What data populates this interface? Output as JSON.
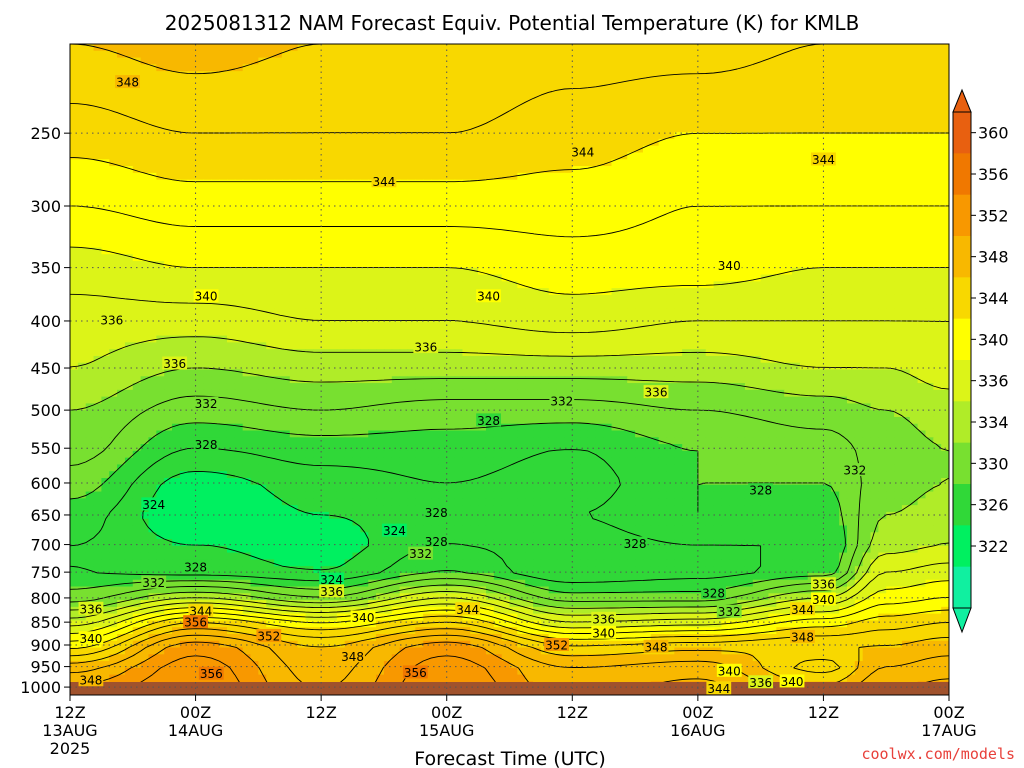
{
  "title": "2025081312 NAM Forecast Equiv. Potential Temperature (K) for KMLB",
  "credit": "coolwx.com/models",
  "colors": {
    "accent_credit": "#e8403a",
    "ground": "#a0522d",
    "grid": "#555555"
  },
  "chart_data": {
    "type": "heatmap",
    "title": "2025081312 NAM Forecast Equiv. Potential Temperature (K) for KMLB",
    "xlabel": "Forecast Time (UTC)",
    "ylabel": "",
    "x_unit": "forecast hour",
    "xlim": [
      0,
      84
    ],
    "ylim": [
      1020,
      200
    ],
    "y_scale": "log (pressure, hPa)",
    "grid": "dotted",
    "x_ticks": [
      {
        "x": 0,
        "line1": "12Z",
        "line2": "13AUG",
        "line3": "2025"
      },
      {
        "x": 12,
        "line1": "00Z",
        "line2": "14AUG",
        "line3": ""
      },
      {
        "x": 24,
        "line1": "12Z",
        "line2": "",
        "line3": ""
      },
      {
        "x": 36,
        "line1": "00Z",
        "line2": "15AUG",
        "line3": ""
      },
      {
        "x": 48,
        "line1": "12Z",
        "line2": "",
        "line3": ""
      },
      {
        "x": 60,
        "line1": "00Z",
        "line2": "16AUG",
        "line3": ""
      },
      {
        "x": 72,
        "line1": "12Z",
        "line2": "",
        "line3": ""
      },
      {
        "x": 84,
        "line1": "00Z",
        "line2": "17AUG",
        "line3": ""
      }
    ],
    "y_ticks": [
      "250",
      "300",
      "350",
      "400",
      "450",
      "500",
      "550",
      "600",
      "650",
      "700",
      "750",
      "800",
      "850",
      "900",
      "950",
      "1000"
    ],
    "colorbar": {
      "ticks": [
        "360",
        "356",
        "352",
        "348",
        "344",
        "340",
        "336",
        "334",
        "330",
        "326",
        "322"
      ],
      "bands": [
        {
          "from": 320,
          "to": 322,
          "color": "#10f0a0"
        },
        {
          "from": 322,
          "to": 326,
          "color": "#00f060"
        },
        {
          "from": 326,
          "to": 330,
          "color": "#30d838"
        },
        {
          "from": 330,
          "to": 334,
          "color": "#78e030"
        },
        {
          "from": 334,
          "to": 336,
          "color": "#b0ec28"
        },
        {
          "from": 336,
          "to": 340,
          "color": "#dcf418"
        },
        {
          "from": 340,
          "to": 344,
          "color": "#ffff00"
        },
        {
          "from": 344,
          "to": 348,
          "color": "#f8d800"
        },
        {
          "from": 348,
          "to": 352,
          "color": "#f8b800"
        },
        {
          "from": 352,
          "to": 356,
          "color": "#f89800"
        },
        {
          "from": 356,
          "to": 360,
          "color": "#f07800"
        },
        {
          "from": 360,
          "to": 364,
          "color": "#e86010"
        }
      ]
    },
    "profiles": [
      {
        "x": 0,
        "levels": [
          {
            "p": 1010,
            "v": 353
          },
          {
            "p": 950,
            "v": 349
          },
          {
            "p": 900,
            "v": 343
          },
          {
            "p": 850,
            "v": 337
          },
          {
            "p": 800,
            "v": 331
          },
          {
            "p": 750,
            "v": 328
          },
          {
            "p": 700,
            "v": 328
          },
          {
            "p": 650,
            "v": 329
          },
          {
            "p": 600,
            "v": 331
          },
          {
            "p": 550,
            "v": 333
          },
          {
            "p": 500,
            "v": 334
          },
          {
            "p": 450,
            "v": 336
          },
          {
            "p": 400,
            "v": 337
          },
          {
            "p": 350,
            "v": 339
          },
          {
            "p": 300,
            "v": 342
          },
          {
            "p": 250,
            "v": 345
          },
          {
            "p": 200,
            "v": 348
          }
        ]
      },
      {
        "x": 12,
        "levels": [
          {
            "p": 1010,
            "v": 356
          },
          {
            "p": 950,
            "v": 355
          },
          {
            "p": 900,
            "v": 353
          },
          {
            "p": 850,
            "v": 346
          },
          {
            "p": 800,
            "v": 336
          },
          {
            "p": 750,
            "v": 327
          },
          {
            "p": 700,
            "v": 326
          },
          {
            "p": 650,
            "v": 324
          },
          {
            "p": 600,
            "v": 325
          },
          {
            "p": 550,
            "v": 328
          },
          {
            "p": 500,
            "v": 331
          },
          {
            "p": 450,
            "v": 334
          },
          {
            "p": 400,
            "v": 337
          },
          {
            "p": 350,
            "v": 340
          },
          {
            "p": 300,
            "v": 343
          },
          {
            "p": 250,
            "v": 346
          },
          {
            "p": 200,
            "v": 349
          }
        ]
      },
      {
        "x": 24,
        "levels": [
          {
            "p": 1010,
            "v": 350
          },
          {
            "p": 950,
            "v": 349
          },
          {
            "p": 900,
            "v": 348
          },
          {
            "p": 850,
            "v": 342
          },
          {
            "p": 800,
            "v": 332
          },
          {
            "p": 750,
            "v": 326
          },
          {
            "p": 700,
            "v": 325
          },
          {
            "p": 650,
            "v": 326
          },
          {
            "p": 600,
            "v": 327
          },
          {
            "p": 550,
            "v": 329
          },
          {
            "p": 500,
            "v": 332
          },
          {
            "p": 450,
            "v": 335
          },
          {
            "p": 400,
            "v": 338
          },
          {
            "p": 350,
            "v": 340
          },
          {
            "p": 300,
            "v": 343
          },
          {
            "p": 250,
            "v": 346
          },
          {
            "p": 200,
            "v": 348
          }
        ]
      },
      {
        "x": 36,
        "levels": [
          {
            "p": 1010,
            "v": 356
          },
          {
            "p": 950,
            "v": 355
          },
          {
            "p": 900,
            "v": 353
          },
          {
            "p": 850,
            "v": 346
          },
          {
            "p": 800,
            "v": 338
          },
          {
            "p": 750,
            "v": 330
          },
          {
            "p": 700,
            "v": 328
          },
          {
            "p": 650,
            "v": 327
          },
          {
            "p": 600,
            "v": 328
          },
          {
            "p": 550,
            "v": 329
          },
          {
            "p": 500,
            "v": 331
          },
          {
            "p": 450,
            "v": 335
          },
          {
            "p": 400,
            "v": 338
          },
          {
            "p": 350,
            "v": 340
          },
          {
            "p": 300,
            "v": 343
          },
          {
            "p": 250,
            "v": 346
          },
          {
            "p": 200,
            "v": 348
          }
        ]
      },
      {
        "x": 48,
        "levels": [
          {
            "p": 1010,
            "v": 351
          },
          {
            "p": 950,
            "v": 350
          },
          {
            "p": 900,
            "v": 346
          },
          {
            "p": 850,
            "v": 338
          },
          {
            "p": 800,
            "v": 331
          },
          {
            "p": 750,
            "v": 326
          },
          {
            "p": 700,
            "v": 327
          },
          {
            "p": 650,
            "v": 328
          },
          {
            "p": 600,
            "v": 327
          },
          {
            "p": 550,
            "v": 328
          },
          {
            "p": 500,
            "v": 331
          },
          {
            "p": 450,
            "v": 335
          },
          {
            "p": 400,
            "v": 339
          },
          {
            "p": 350,
            "v": 341
          },
          {
            "p": 300,
            "v": 343
          },
          {
            "p": 250,
            "v": 345
          },
          {
            "p": 200,
            "v": 347
          }
        ]
      },
      {
        "x": 60,
        "levels": [
          {
            "p": 1010,
            "v": 353
          },
          {
            "p": 950,
            "v": 351
          },
          {
            "p": 900,
            "v": 347
          },
          {
            "p": 850,
            "v": 339
          },
          {
            "p": 800,
            "v": 331
          },
          {
            "p": 750,
            "v": 327
          },
          {
            "p": 700,
            "v": 328
          },
          {
            "p": 650,
            "v": 330
          },
          {
            "p": 600,
            "v": 330
          },
          {
            "p": 550,
            "v": 330
          },
          {
            "p": 500,
            "v": 332
          },
          {
            "p": 450,
            "v": 335
          },
          {
            "p": 400,
            "v": 338
          },
          {
            "p": 350,
            "v": 341
          },
          {
            "p": 300,
            "v": 342
          },
          {
            "p": 250,
            "v": 344
          },
          {
            "p": 200,
            "v": 347
          }
        ]
      },
      {
        "x": 72,
        "levels": [
          {
            "p": 1010,
            "v": 349
          },
          {
            "p": 950,
            "v": 345
          },
          {
            "p": 900,
            "v": 348
          },
          {
            "p": 850,
            "v": 343
          },
          {
            "p": 800,
            "v": 336
          },
          {
            "p": 750,
            "v": 329
          },
          {
            "p": 700,
            "v": 328
          },
          {
            "p": 650,
            "v": 329
          },
          {
            "p": 600,
            "v": 330
          },
          {
            "p": 550,
            "v": 331
          },
          {
            "p": 500,
            "v": 333
          },
          {
            "p": 450,
            "v": 336
          },
          {
            "p": 400,
            "v": 338
          },
          {
            "p": 350,
            "v": 340
          },
          {
            "p": 300,
            "v": 342
          },
          {
            "p": 250,
            "v": 344
          },
          {
            "p": 200,
            "v": 346
          }
        ]
      },
      {
        "x": 78,
        "levels": [
          {
            "p": 1010,
            "v": 352
          },
          {
            "p": 950,
            "v": 350
          },
          {
            "p": 900,
            "v": 348
          },
          {
            "p": 850,
            "v": 345
          },
          {
            "p": 800,
            "v": 341
          },
          {
            "p": 750,
            "v": 338
          },
          {
            "p": 700,
            "v": 335
          },
          {
            "p": 650,
            "v": 334
          },
          {
            "p": 600,
            "v": 333
          },
          {
            "p": 550,
            "v": 333
          },
          {
            "p": 500,
            "v": 334
          },
          {
            "p": 450,
            "v": 336
          },
          {
            "p": 400,
            "v": 338
          },
          {
            "p": 350,
            "v": 340
          },
          {
            "p": 300,
            "v": 342
          },
          {
            "p": 250,
            "v": 344
          },
          {
            "p": 200,
            "v": 346
          }
        ]
      },
      {
        "x": 84,
        "levels": [
          {
            "p": 1010,
            "v": 353
          },
          {
            "p": 950,
            "v": 351
          },
          {
            "p": 900,
            "v": 349
          },
          {
            "p": 850,
            "v": 346
          },
          {
            "p": 800,
            "v": 342
          },
          {
            "p": 750,
            "v": 339
          },
          {
            "p": 700,
            "v": 336
          },
          {
            "p": 650,
            "v": 335
          },
          {
            "p": 600,
            "v": 334
          },
          {
            "p": 550,
            "v": 334
          },
          {
            "p": 500,
            "v": 335
          },
          {
            "p": 450,
            "v": 337
          },
          {
            "p": 400,
            "v": 338
          },
          {
            "p": 350,
            "v": 340
          },
          {
            "p": 300,
            "v": 342
          },
          {
            "p": 250,
            "v": 344
          },
          {
            "p": 200,
            "v": 346
          }
        ]
      }
    ],
    "contour_interval": 2,
    "contour_labels": [
      {
        "x": 5.5,
        "p": 220,
        "text": "348"
      },
      {
        "x": 30,
        "p": 282,
        "text": "344"
      },
      {
        "x": 49,
        "p": 262,
        "text": "344"
      },
      {
        "x": 72,
        "p": 267,
        "text": "344"
      },
      {
        "x": 63,
        "p": 348,
        "text": "340"
      },
      {
        "x": 13,
        "p": 376,
        "text": "340"
      },
      {
        "x": 40,
        "p": 376,
        "text": "340"
      },
      {
        "x": 4,
        "p": 399,
        "text": "336"
      },
      {
        "x": 10,
        "p": 445,
        "text": "336"
      },
      {
        "x": 34,
        "p": 427,
        "text": "336"
      },
      {
        "x": 56,
        "p": 478,
        "text": "336"
      },
      {
        "x": 13,
        "p": 492,
        "text": "332"
      },
      {
        "x": 47,
        "p": 489,
        "text": "332"
      },
      {
        "x": 13,
        "p": 545,
        "text": "328"
      },
      {
        "x": 40,
        "p": 513,
        "text": "328"
      },
      {
        "x": 75,
        "p": 581,
        "text": "332"
      },
      {
        "x": 66,
        "p": 611,
        "text": "328"
      },
      {
        "x": 8,
        "p": 633,
        "text": "324"
      },
      {
        "x": 31,
        "p": 676,
        "text": "324"
      },
      {
        "x": 35,
        "p": 646,
        "text": "328"
      },
      {
        "x": 35,
        "p": 695,
        "text": "328"
      },
      {
        "x": 54,
        "p": 698,
        "text": "328"
      },
      {
        "x": 33.5,
        "p": 716,
        "text": "332"
      },
      {
        "x": 12,
        "p": 740,
        "text": "328"
      },
      {
        "x": 8,
        "p": 770,
        "text": "332"
      },
      {
        "x": 25,
        "p": 764,
        "text": "324"
      },
      {
        "x": 25,
        "p": 787,
        "text": "336"
      },
      {
        "x": 12.5,
        "p": 827,
        "text": "344"
      },
      {
        "x": 12,
        "p": 850,
        "text": "356"
      },
      {
        "x": 2,
        "p": 822,
        "text": "336"
      },
      {
        "x": 2,
        "p": 885,
        "text": "340"
      },
      {
        "x": 2,
        "p": 983,
        "text": "348"
      },
      {
        "x": 19,
        "p": 880,
        "text": "352"
      },
      {
        "x": 28,
        "p": 840,
        "text": "340"
      },
      {
        "x": 27,
        "p": 926,
        "text": "348"
      },
      {
        "x": 38,
        "p": 823,
        "text": "344"
      },
      {
        "x": 33,
        "p": 964,
        "text": "356"
      },
      {
        "x": 13.5,
        "p": 967,
        "text": "356"
      },
      {
        "x": 51,
        "p": 843,
        "text": "336"
      },
      {
        "x": 51,
        "p": 873,
        "text": "340"
      },
      {
        "x": 46.5,
        "p": 900,
        "text": "352"
      },
      {
        "x": 56,
        "p": 904,
        "text": "348"
      },
      {
        "x": 61.5,
        "p": 790,
        "text": "328"
      },
      {
        "x": 63,
        "p": 828,
        "text": "332"
      },
      {
        "x": 70,
        "p": 823,
        "text": "344"
      },
      {
        "x": 72,
        "p": 773,
        "text": "336"
      },
      {
        "x": 72,
        "p": 803,
        "text": "340"
      },
      {
        "x": 70,
        "p": 882,
        "text": "348"
      },
      {
        "x": 63,
        "p": 960,
        "text": "340"
      },
      {
        "x": 66,
        "p": 988,
        "text": "336"
      },
      {
        "x": 69,
        "p": 986,
        "text": "340"
      },
      {
        "x": 62,
        "p": 1003,
        "text": "344"
      }
    ]
  }
}
